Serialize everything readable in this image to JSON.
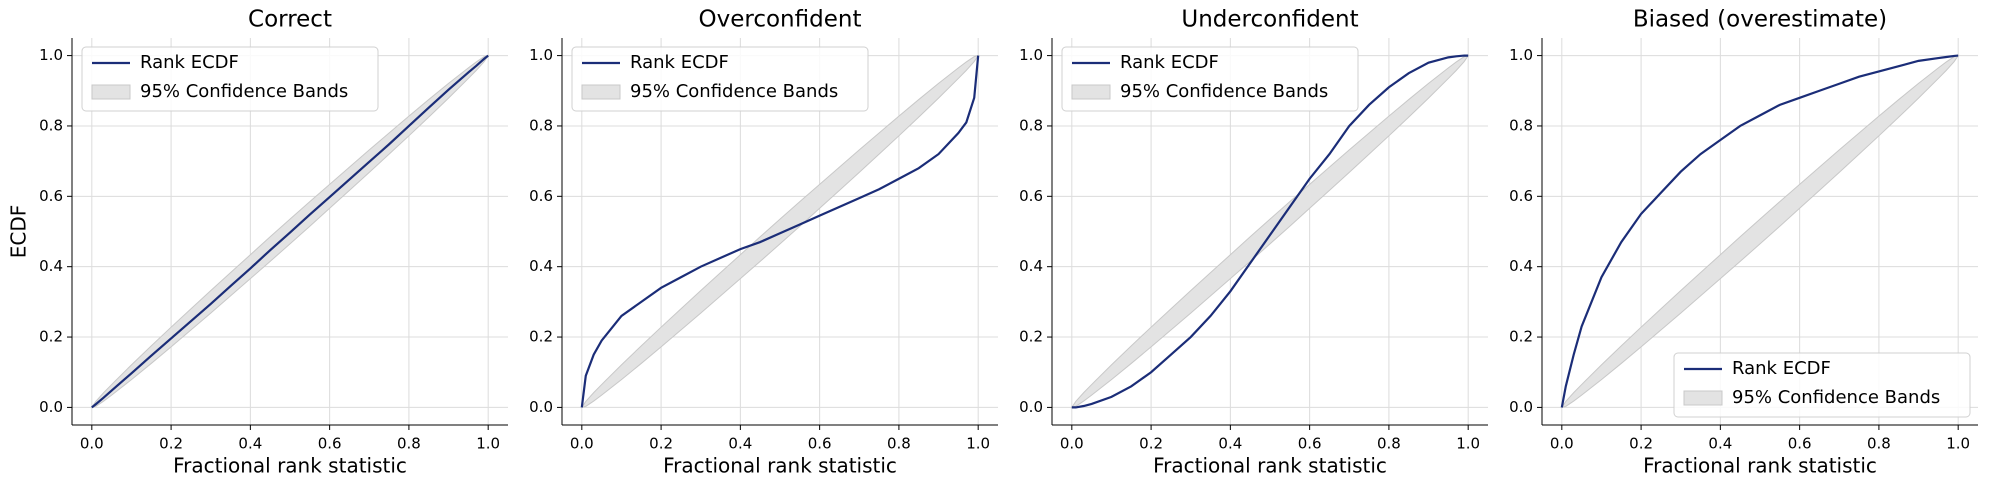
{
  "chart_data": [
    {
      "type": "line",
      "title": "Correct",
      "xlabel": "Fractional rank statistic",
      "ylabel": "ECDF",
      "legend": "upper left",
      "grid": true,
      "xlim": [
        -0.05,
        1.05
      ],
      "ylim": [
        -0.05,
        1.05
      ],
      "xticks": [
        {
          "value": 0,
          "label": "0.0"
        },
        {
          "value": 0.2,
          "label": "0.2"
        },
        {
          "value": 0.4,
          "label": "0.4"
        },
        {
          "value": 0.6,
          "label": "0.6"
        },
        {
          "value": 0.8,
          "label": "0.8"
        },
        {
          "value": 1,
          "label": "1.0"
        }
      ],
      "yticks": [
        {
          "value": 0,
          "label": "0.0"
        },
        {
          "value": 0.2,
          "label": "0.2"
        },
        {
          "value": 0.4,
          "label": "0.4"
        },
        {
          "value": 0.6,
          "label": "0.6"
        },
        {
          "value": 0.8,
          "label": "0.8"
        },
        {
          "value": 1,
          "label": "1.0"
        }
      ],
      "x": [
        0,
        0.01,
        0.03,
        0.05,
        0.1,
        0.15,
        0.2,
        0.25,
        0.3,
        0.35,
        0.4,
        0.45,
        0.5,
        0.55,
        0.6,
        0.65,
        0.7,
        0.75,
        0.8,
        0.85,
        0.9,
        0.95,
        0.97,
        0.99,
        1
      ],
      "series": [
        {
          "name": "Rank ECDF",
          "color": "#1b2d78",
          "values": [
            0,
            0.009,
            0.028,
            0.048,
            0.097,
            0.147,
            0.196,
            0.245,
            0.294,
            0.345,
            0.395,
            0.447,
            0.497,
            0.548,
            0.598,
            0.648,
            0.698,
            0.748,
            0.8,
            0.852,
            0.903,
            0.952,
            0.971,
            0.991,
            1
          ]
        },
        {
          "name": "95% Confidence Bands",
          "color": "#e3e3e3",
          "lower": [
            0,
            0.003,
            0.018,
            0.035,
            0.079,
            0.125,
            0.172,
            0.22,
            0.268,
            0.317,
            0.366,
            0.415,
            0.465,
            0.515,
            0.566,
            0.617,
            0.668,
            0.72,
            0.772,
            0.825,
            0.879,
            0.935,
            0.958,
            0.983,
            1
          ],
          "upper": [
            0,
            0.017,
            0.042,
            0.065,
            0.121,
            0.175,
            0.228,
            0.28,
            0.332,
            0.383,
            0.434,
            0.485,
            0.535,
            0.585,
            0.634,
            0.683,
            0.732,
            0.78,
            0.828,
            0.875,
            0.921,
            0.965,
            0.982,
            0.997,
            1
          ]
        }
      ]
    },
    {
      "type": "line",
      "title": "Overconfident",
      "xlabel": "Fractional rank statistic",
      "legend": "upper left",
      "grid": true,
      "xlim": [
        -0.05,
        1.05
      ],
      "ylim": [
        -0.05,
        1.05
      ],
      "xticks": [
        {
          "value": 0,
          "label": "0.0"
        },
        {
          "value": 0.2,
          "label": "0.2"
        },
        {
          "value": 0.4,
          "label": "0.4"
        },
        {
          "value": 0.6,
          "label": "0.6"
        },
        {
          "value": 0.8,
          "label": "0.8"
        },
        {
          "value": 1,
          "label": "1.0"
        }
      ],
      "yticks": [
        {
          "value": 0,
          "label": "0.0"
        },
        {
          "value": 0.2,
          "label": "0.2"
        },
        {
          "value": 0.4,
          "label": "0.4"
        },
        {
          "value": 0.6,
          "label": "0.6"
        },
        {
          "value": 0.8,
          "label": "0.8"
        },
        {
          "value": 1,
          "label": "1.0"
        }
      ],
      "x": [
        0,
        0.01,
        0.03,
        0.05,
        0.1,
        0.15,
        0.2,
        0.25,
        0.3,
        0.35,
        0.4,
        0.45,
        0.5,
        0.55,
        0.6,
        0.65,
        0.7,
        0.75,
        0.8,
        0.85,
        0.9,
        0.95,
        0.97,
        0.99,
        1
      ],
      "series": [
        {
          "name": "Rank ECDF",
          "color": "#1b2d78",
          "values": [
            0,
            0.09,
            0.15,
            0.19,
            0.26,
            0.3,
            0.34,
            0.37,
            0.4,
            0.425,
            0.45,
            0.47,
            0.495,
            0.52,
            0.545,
            0.57,
            0.595,
            0.62,
            0.65,
            0.68,
            0.72,
            0.78,
            0.81,
            0.88,
            1
          ]
        },
        {
          "name": "95% Confidence Bands",
          "color": "#e3e3e3",
          "lower": [
            0,
            0.003,
            0.018,
            0.035,
            0.079,
            0.125,
            0.172,
            0.22,
            0.268,
            0.317,
            0.366,
            0.415,
            0.465,
            0.515,
            0.566,
            0.617,
            0.668,
            0.72,
            0.772,
            0.825,
            0.879,
            0.935,
            0.958,
            0.983,
            1
          ],
          "upper": [
            0,
            0.017,
            0.042,
            0.065,
            0.121,
            0.175,
            0.228,
            0.28,
            0.332,
            0.383,
            0.434,
            0.485,
            0.535,
            0.585,
            0.634,
            0.683,
            0.732,
            0.78,
            0.828,
            0.875,
            0.921,
            0.965,
            0.982,
            0.997,
            1
          ]
        }
      ]
    },
    {
      "type": "line",
      "title": "Underconfident",
      "xlabel": "Fractional rank statistic",
      "legend": "upper left",
      "grid": true,
      "xlim": [
        -0.05,
        1.05
      ],
      "ylim": [
        -0.05,
        1.05
      ],
      "xticks": [
        {
          "value": 0,
          "label": "0.0"
        },
        {
          "value": 0.2,
          "label": "0.2"
        },
        {
          "value": 0.4,
          "label": "0.4"
        },
        {
          "value": 0.6,
          "label": "0.6"
        },
        {
          "value": 0.8,
          "label": "0.8"
        },
        {
          "value": 1,
          "label": "1.0"
        }
      ],
      "yticks": [
        {
          "value": 0,
          "label": "0.0"
        },
        {
          "value": 0.2,
          "label": "0.2"
        },
        {
          "value": 0.4,
          "label": "0.4"
        },
        {
          "value": 0.6,
          "label": "0.6"
        },
        {
          "value": 0.8,
          "label": "0.8"
        },
        {
          "value": 1,
          "label": "1.0"
        }
      ],
      "x": [
        0,
        0.01,
        0.03,
        0.05,
        0.1,
        0.15,
        0.2,
        0.25,
        0.3,
        0.35,
        0.4,
        0.45,
        0.5,
        0.55,
        0.6,
        0.65,
        0.7,
        0.75,
        0.8,
        0.85,
        0.9,
        0.95,
        0.97,
        0.99,
        1
      ],
      "series": [
        {
          "name": "Rank ECDF",
          "color": "#1b2d78",
          "values": [
            0,
            0,
            0.004,
            0.01,
            0.03,
            0.06,
            0.1,
            0.15,
            0.2,
            0.26,
            0.33,
            0.41,
            0.49,
            0.57,
            0.65,
            0.72,
            0.8,
            0.86,
            0.91,
            0.95,
            0.98,
            0.995,
            0.998,
            1,
            1
          ]
        },
        {
          "name": "95% Confidence Bands",
          "color": "#e3e3e3",
          "lower": [
            0,
            0.003,
            0.018,
            0.035,
            0.079,
            0.125,
            0.172,
            0.22,
            0.268,
            0.317,
            0.366,
            0.415,
            0.465,
            0.515,
            0.566,
            0.617,
            0.668,
            0.72,
            0.772,
            0.825,
            0.879,
            0.935,
            0.958,
            0.983,
            1
          ],
          "upper": [
            0,
            0.017,
            0.042,
            0.065,
            0.121,
            0.175,
            0.228,
            0.28,
            0.332,
            0.383,
            0.434,
            0.485,
            0.535,
            0.585,
            0.634,
            0.683,
            0.732,
            0.78,
            0.828,
            0.875,
            0.921,
            0.965,
            0.982,
            0.997,
            1
          ]
        }
      ]
    },
    {
      "type": "line",
      "title": "Biased (overestimate)",
      "xlabel": "Fractional rank statistic",
      "legend": "lower right",
      "grid": true,
      "xlim": [
        -0.05,
        1.05
      ],
      "ylim": [
        -0.05,
        1.05
      ],
      "xticks": [
        {
          "value": 0,
          "label": "0.0"
        },
        {
          "value": 0.2,
          "label": "0.2"
        },
        {
          "value": 0.4,
          "label": "0.4"
        },
        {
          "value": 0.6,
          "label": "0.6"
        },
        {
          "value": 0.8,
          "label": "0.8"
        },
        {
          "value": 1,
          "label": "1.0"
        }
      ],
      "yticks": [
        {
          "value": 0,
          "label": "0.0"
        },
        {
          "value": 0.2,
          "label": "0.2"
        },
        {
          "value": 0.4,
          "label": "0.4"
        },
        {
          "value": 0.6,
          "label": "0.6"
        },
        {
          "value": 0.8,
          "label": "0.8"
        },
        {
          "value": 1,
          "label": "1.0"
        }
      ],
      "x": [
        0,
        0.01,
        0.03,
        0.05,
        0.1,
        0.15,
        0.2,
        0.25,
        0.3,
        0.35,
        0.4,
        0.45,
        0.5,
        0.55,
        0.6,
        0.65,
        0.7,
        0.75,
        0.8,
        0.85,
        0.9,
        0.95,
        0.97,
        0.99,
        1
      ],
      "series": [
        {
          "name": "Rank ECDF",
          "color": "#1b2d78",
          "values": [
            0,
            0.06,
            0.15,
            0.23,
            0.37,
            0.47,
            0.55,
            0.61,
            0.67,
            0.72,
            0.76,
            0.8,
            0.83,
            0.86,
            0.88,
            0.9,
            0.92,
            0.94,
            0.955,
            0.97,
            0.985,
            0.993,
            0.996,
            0.999,
            1
          ]
        },
        {
          "name": "95% Confidence Bands",
          "color": "#e3e3e3",
          "lower": [
            0,
            0.003,
            0.018,
            0.035,
            0.079,
            0.125,
            0.172,
            0.22,
            0.268,
            0.317,
            0.366,
            0.415,
            0.465,
            0.515,
            0.566,
            0.617,
            0.668,
            0.72,
            0.772,
            0.825,
            0.879,
            0.935,
            0.958,
            0.983,
            1
          ],
          "upper": [
            0,
            0.017,
            0.042,
            0.065,
            0.121,
            0.175,
            0.228,
            0.28,
            0.332,
            0.383,
            0.434,
            0.485,
            0.535,
            0.585,
            0.634,
            0.683,
            0.732,
            0.78,
            0.828,
            0.875,
            0.921,
            0.965,
            0.982,
            0.997,
            1
          ]
        }
      ]
    }
  ]
}
